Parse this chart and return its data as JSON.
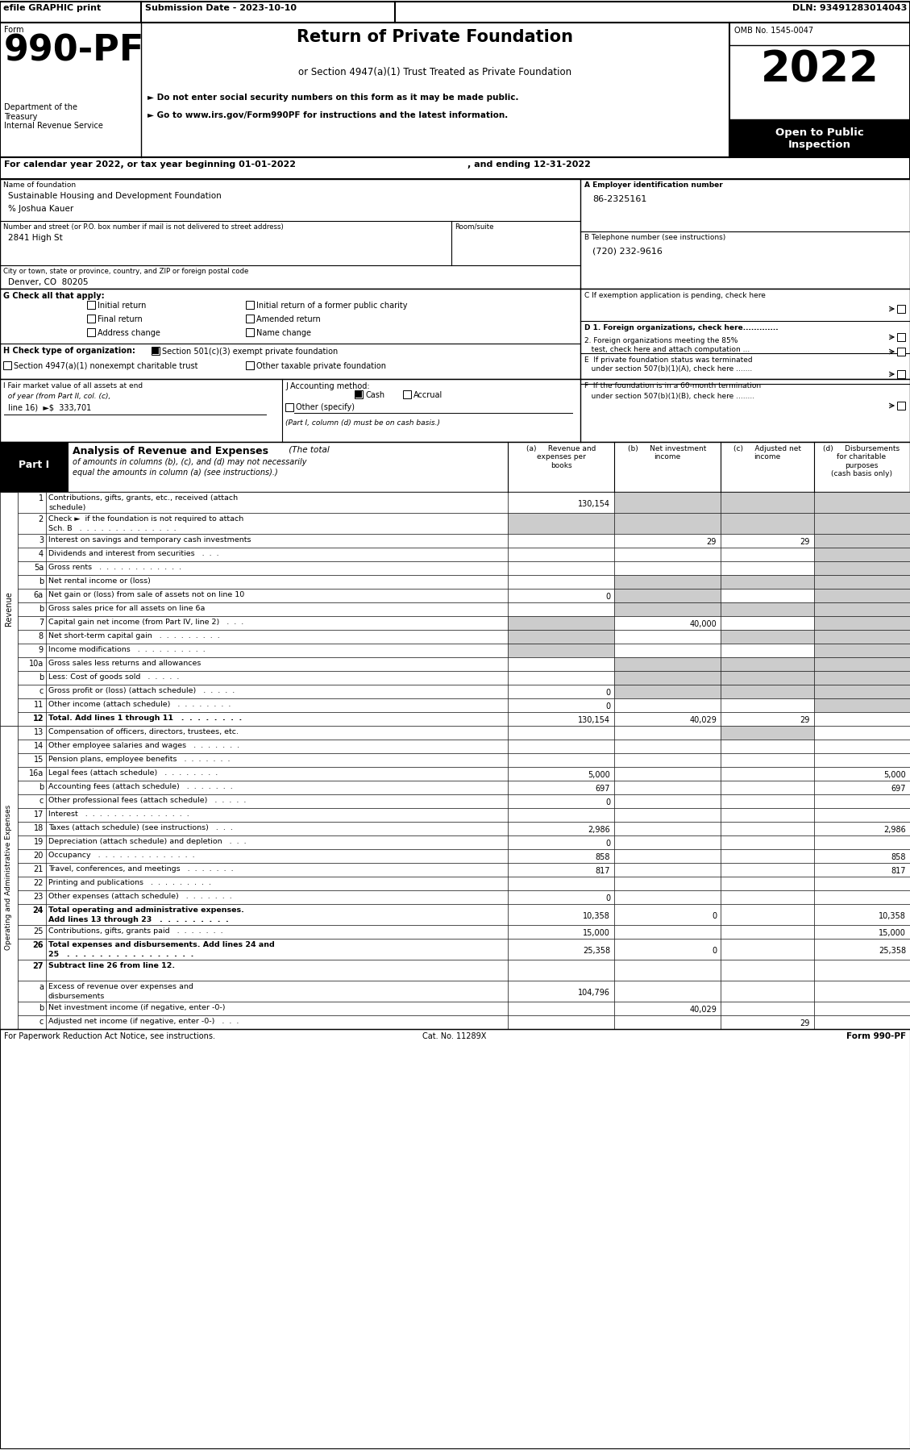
{
  "header_bar": {
    "efile_text": "efile GRAPHIC print",
    "submission_text": "Submission Date - 2023-10-10",
    "dln_text": "DLN: 93491283014043"
  },
  "form_number": "990-PF",
  "form_label": "Form",
  "dept_text": "Department of the\nTreasury\nInternal Revenue Service",
  "title_main": "Return of Private Foundation",
  "title_sub": "or Section 4947(a)(1) Trust Treated as Private Foundation",
  "bullet1": "► Do not enter social security numbers on this form as it may be made public.",
  "bullet2": "► Go to www.irs.gov/Form990PF for instructions and the latest information.",
  "year_box": "2022",
  "open_to_public": "Open to Public\nInspection",
  "omb_text": "OMB No. 1545-0047",
  "cal_year_line1": "For calendar year 2022, or tax year beginning 01-01-2022",
  "cal_year_line2": ", and ending 12-31-2022",
  "name_of_foundation_label": "Name of foundation",
  "name_of_foundation": "Sustainable Housing and Development Foundation",
  "care_of": "% Joshua Kauer",
  "address_label": "Number and street (or P.O. box number if mail is not delivered to street address)",
  "room_suite_label": "Room/suite",
  "address_value": "2841 High St",
  "city_label": "City or town, state or province, country, and ZIP or foreign postal code",
  "city_value": "Denver, CO  80205",
  "ein_label": "A Employer identification number",
  "ein_value": "86-2325161",
  "phone_label": "B Telephone number (see instructions)",
  "phone_value": "(720) 232-9616",
  "g_label": "G Check all that apply:",
  "d1_label": "D 1. Foreign organizations, check here.............",
  "d2_label": "2. Foreign organizations meeting the 85%\n   test, check here and attach computation ...",
  "e_label": "E  If private foundation status was terminated\n   under section 507(b)(1)(A), check here .......",
  "f_label": "F  If the foundation is in a 60-month termination\n   under section 507(b)(1)(B), check here ........",
  "h_label": "H Check type of organization:",
  "h_501c3_text": "Section 501(c)(3) exempt private foundation",
  "h_4947_text": "Section 4947(a)(1) nonexempt charitable trust",
  "h_other_text": "Other taxable private foundation",
  "i_line1": "I Fair market value of all assets at end",
  "i_line2": "  of year (from Part II, col. (c),",
  "i_line3": "  line 16)  ►$  333,701",
  "j_label": "J Accounting method:",
  "j_note": "(Part I, column (d) must be on cash basis.)",
  "part1_title": "Part I",
  "part1_subtitle": "Analysis of Revenue and Expenses",
  "part1_italic": "(The total",
  "part1_note1": "of amounts in columns (b), (c), and (d) may not necessarily",
  "part1_note2": "equal the amounts in column (a) (see instructions).)",
  "col_a": "(a)     Revenue and\nexpenses per\nbooks",
  "col_b": "(b)     Net investment\nincome",
  "col_c": "(c)     Adjusted net\nincome",
  "col_d": "(d)     Disbursements\nfor charitable\npurposes\n(cash basis only)",
  "revenue_label": "Revenue",
  "op_expenses_label": "Operating and Administrative Expenses",
  "rows": [
    {
      "num": "1",
      "label": "Contributions, gifts, grants, etc., received (attach\nschedule)",
      "a": "130,154",
      "b": "",
      "c": "",
      "d": "",
      "shaded_b": true,
      "shaded_c": true,
      "shaded_d": true
    },
    {
      "num": "2",
      "label": "Check ►  if the foundation is not required to attach\nSch. B   .  .  .  .  .  .  .  .  .  .  .  .  .  .",
      "a": "",
      "b": "",
      "c": "",
      "d": "",
      "shaded_a": true,
      "shaded_b": true,
      "shaded_c": true,
      "shaded_d": true
    },
    {
      "num": "3",
      "label": "Interest on savings and temporary cash investments",
      "a": "",
      "b": "29",
      "c": "29",
      "d": "",
      "shaded_d": true
    },
    {
      "num": "4",
      "label": "Dividends and interest from securities   .  .  .",
      "a": "",
      "b": "",
      "c": "",
      "d": "",
      "shaded_d": true
    },
    {
      "num": "5a",
      "label": "Gross rents   .  .  .  .  .  .  .  .  .  .  .  .",
      "a": "",
      "b": "",
      "c": "",
      "d": "",
      "shaded_d": true
    },
    {
      "num": "b",
      "label": "Net rental income or (loss)",
      "a": "",
      "b": "",
      "c": "",
      "d": "",
      "shaded_b": true,
      "shaded_c": true,
      "shaded_d": true
    },
    {
      "num": "6a",
      "label": "Net gain or (loss) from sale of assets not on line 10",
      "a": "0",
      "b": "",
      "c": "",
      "d": "",
      "shaded_b": true,
      "shaded_d": true
    },
    {
      "num": "b",
      "label": "Gross sales price for all assets on line 6a",
      "a": "",
      "b": "",
      "c": "",
      "d": "",
      "shaded_b": true,
      "shaded_c": true,
      "shaded_d": true
    },
    {
      "num": "7",
      "label": "Capital gain net income (from Part IV, line 2)   .  .  .",
      "a": "",
      "b": "40,000",
      "c": "",
      "d": "",
      "shaded_a": true,
      "shaded_d": true
    },
    {
      "num": "8",
      "label": "Net short-term capital gain   .  .  .  .  .  .  .  .  .",
      "a": "",
      "b": "",
      "c": "",
      "d": "",
      "shaded_a": true,
      "shaded_c": true,
      "shaded_d": true
    },
    {
      "num": "9",
      "label": "Income modifications   .  .  .  .  .  .  .  .  .  .",
      "a": "",
      "b": "",
      "c": "",
      "d": "",
      "shaded_a": true,
      "shaded_d": true
    },
    {
      "num": "10a",
      "label": "Gross sales less returns and allowances",
      "a": "",
      "b": "",
      "c": "",
      "d": "",
      "shaded_b": true,
      "shaded_c": true,
      "shaded_d": true
    },
    {
      "num": "b",
      "label": "Less: Cost of goods sold   .  .  .  .  .",
      "a": "",
      "b": "",
      "c": "",
      "d": "",
      "shaded_b": true,
      "shaded_c": true,
      "shaded_d": true
    },
    {
      "num": "c",
      "label": "Gross profit or (loss) (attach schedule)   .  .  .  .  .",
      "a": "0",
      "b": "",
      "c": "",
      "d": "",
      "shaded_b": true,
      "shaded_c": true,
      "shaded_d": true
    },
    {
      "num": "11",
      "label": "Other income (attach schedule)   .  .  .  .  .  .  .  .",
      "a": "0",
      "b": "",
      "c": "",
      "d": "",
      "shaded_d": true
    },
    {
      "num": "12",
      "label": "Total. Add lines 1 through 11   .  .  .  .  .  .  .  .",
      "a": "130,154",
      "b": "40,029",
      "c": "29",
      "d": "",
      "bold": true
    },
    {
      "num": "13",
      "label": "Compensation of officers, directors, trustees, etc.",
      "a": "",
      "b": "",
      "c": "",
      "d": "",
      "shaded_c": true
    },
    {
      "num": "14",
      "label": "Other employee salaries and wages   .  .  .  .  .  .  .",
      "a": "",
      "b": "",
      "c": "",
      "d": ""
    },
    {
      "num": "15",
      "label": "Pension plans, employee benefits   .  .  .  .  .  .  .",
      "a": "",
      "b": "",
      "c": "",
      "d": ""
    },
    {
      "num": "16a",
      "label": "Legal fees (attach schedule)   .  .  .  .  .  .  .  .",
      "a": "5,000",
      "b": "",
      "c": "",
      "d": "5,000"
    },
    {
      "num": "b",
      "label": "Accounting fees (attach schedule)   .  .  .  .  .  .  .",
      "a": "697",
      "b": "",
      "c": "",
      "d": "697"
    },
    {
      "num": "c",
      "label": "Other professional fees (attach schedule)   .  .  .  .  .",
      "a": "0",
      "b": "",
      "c": "",
      "d": ""
    },
    {
      "num": "17",
      "label": "Interest   .  .  .  .  .  .  .  .  .  .  .  .  .  .  .",
      "a": "",
      "b": "",
      "c": "",
      "d": ""
    },
    {
      "num": "18",
      "label": "Taxes (attach schedule) (see instructions)   .  .  .",
      "a": "2,986",
      "b": "",
      "c": "",
      "d": "2,986"
    },
    {
      "num": "19",
      "label": "Depreciation (attach schedule) and depletion   .  .  .",
      "a": "0",
      "b": "",
      "c": "",
      "d": ""
    },
    {
      "num": "20",
      "label": "Occupancy   .  .  .  .  .  .  .  .  .  .  .  .  .  .",
      "a": "858",
      "b": "",
      "c": "",
      "d": "858"
    },
    {
      "num": "21",
      "label": "Travel, conferences, and meetings   .  .  .  .  .  .  .",
      "a": "817",
      "b": "",
      "c": "",
      "d": "817"
    },
    {
      "num": "22",
      "label": "Printing and publications   .  .  .  .  .  .  .  .  .",
      "a": "",
      "b": "",
      "c": "",
      "d": ""
    },
    {
      "num": "23",
      "label": "Other expenses (attach schedule)   .  .  .  .  .  .  .",
      "a": "0",
      "b": "",
      "c": "",
      "d": ""
    },
    {
      "num": "24",
      "label": "Total operating and administrative expenses.\nAdd lines 13 through 23   .  .  .  .  .  .  .  .  .",
      "a": "10,358",
      "b": "0",
      "c": "",
      "d": "10,358",
      "bold": true
    },
    {
      "num": "25",
      "label": "Contributions, gifts, grants paid   .  .  .  .  .  .  .",
      "a": "15,000",
      "b": "",
      "c": "",
      "d": "15,000"
    },
    {
      "num": "26",
      "label": "Total expenses and disbursements. Add lines 24 and\n25   .  .  .  .  .  .  .  .  .  .  .  .  .  .  .  .",
      "a": "25,358",
      "b": "0",
      "c": "",
      "d": "25,358",
      "bold": true
    },
    {
      "num": "27",
      "label": "Subtract line 26 from line 12.",
      "a": "",
      "b": "",
      "c": "",
      "d": "",
      "bold": true,
      "header_row": true
    },
    {
      "num": "a",
      "label": "Excess of revenue over expenses and\ndisbursements",
      "a": "104,796",
      "b": "",
      "c": "",
      "d": ""
    },
    {
      "num": "b",
      "label": "Net investment income (if negative, enter -0-)",
      "a": "",
      "b": "40,029",
      "c": "",
      "d": ""
    },
    {
      "num": "c",
      "label": "Adjusted net income (if negative, enter -0-)   .  .  .",
      "a": "",
      "b": "",
      "c": "29",
      "d": ""
    }
  ],
  "footer_left": "For Paperwork Reduction Act Notice, see instructions.",
  "footer_cat": "Cat. No. 11289X",
  "footer_right": "Form 990-PF",
  "bg_color": "#ffffff",
  "shade_color": "#cccccc"
}
